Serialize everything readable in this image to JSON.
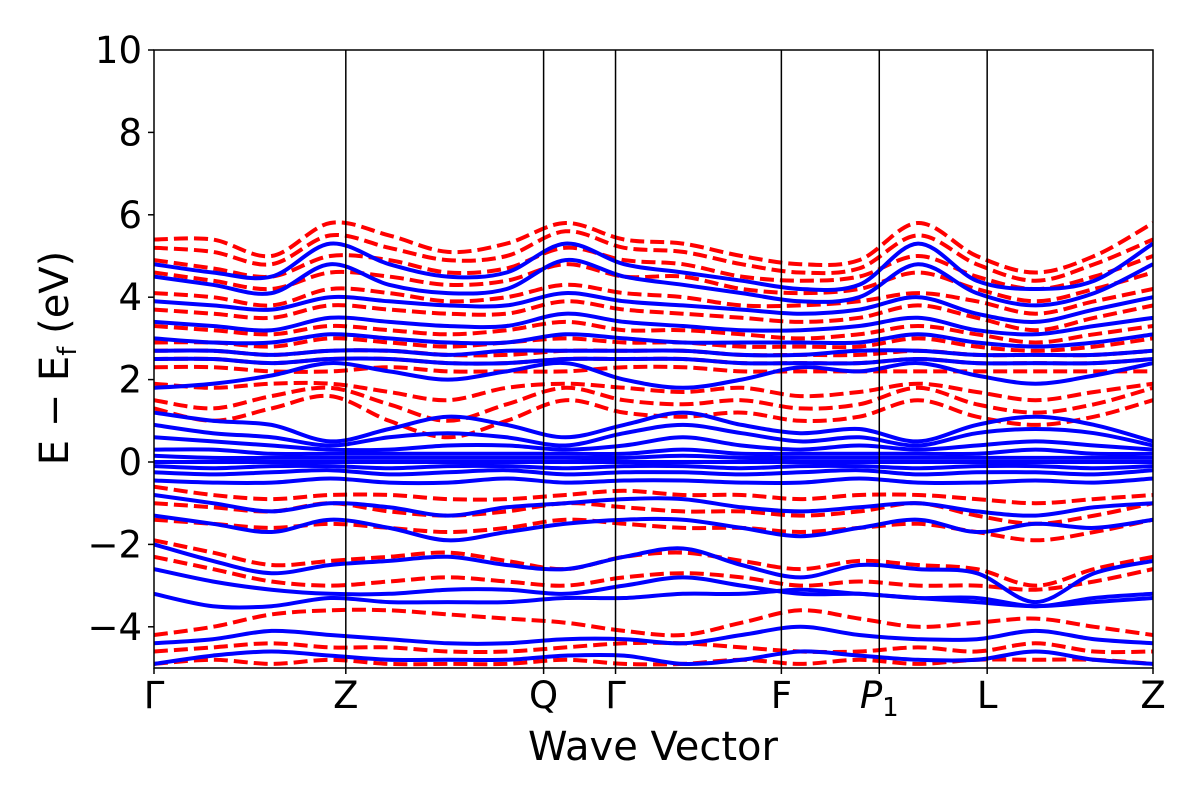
{
  "chart_data": {
    "type": "line",
    "title": "",
    "xlabel": "Wave Vector",
    "ylabel": "E − E_f (eV)",
    "ylabel_parts": {
      "main": "E − E",
      "sub": "f",
      "unit": " (eV)"
    },
    "ylim": [
      -5,
      10
    ],
    "yticks": [
      -4,
      -2,
      0,
      2,
      4,
      6,
      8,
      10
    ],
    "ytick_labels": [
      "−4",
      "−2",
      "0",
      "2",
      "4",
      "6",
      "8",
      "10"
    ],
    "xlim": [
      0,
      5.0
    ],
    "kpoints": [
      {
        "label": "Γ",
        "x": 0.0
      },
      {
        "label": "Z",
        "x": 0.96
      },
      {
        "label": "Q",
        "x": 1.95
      },
      {
        "label": "Γ",
        "x": 2.31
      },
      {
        "label": "F",
        "x": 3.14
      },
      {
        "label": "P",
        "sub": "1",
        "x": 3.63
      },
      {
        "label": "L",
        "x": 4.17
      },
      {
        "label": "Z",
        "x": 5.0
      }
    ],
    "series": [
      {
        "style": "dashed",
        "color": "#ff0000",
        "bands": [
          [
            5.4,
            5.4,
            5.0,
            5.8,
            5.5,
            5.1,
            5.3,
            5.8,
            5.4,
            5.3,
            5.0,
            4.8,
            4.9,
            5.8,
            5.0,
            4.6,
            5.0,
            5.8
          ],
          [
            5.2,
            5.1,
            4.8,
            5.5,
            5.2,
            4.9,
            5.0,
            5.6,
            5.2,
            5.1,
            4.8,
            4.6,
            4.7,
            5.5,
            4.8,
            4.4,
            4.8,
            5.4
          ],
          [
            4.9,
            4.7,
            4.5,
            5.0,
            4.9,
            4.6,
            4.7,
            5.2,
            4.9,
            4.8,
            4.5,
            4.4,
            4.5,
            5.0,
            4.5,
            4.2,
            4.5,
            5.0
          ],
          [
            4.6,
            4.4,
            4.2,
            4.6,
            4.5,
            4.3,
            4.4,
            4.8,
            4.5,
            4.5,
            4.2,
            4.1,
            4.2,
            4.6,
            4.2,
            3.9,
            4.2,
            4.6
          ],
          [
            4.1,
            4.0,
            3.8,
            4.2,
            4.1,
            3.9,
            4.0,
            4.3,
            4.1,
            4.0,
            3.8,
            3.8,
            3.9,
            4.1,
            3.9,
            3.6,
            3.9,
            4.2
          ],
          [
            3.7,
            3.6,
            3.5,
            3.8,
            3.7,
            3.6,
            3.6,
            3.9,
            3.7,
            3.6,
            3.5,
            3.4,
            3.5,
            3.8,
            3.5,
            3.2,
            3.5,
            3.8
          ],
          [
            3.3,
            3.2,
            3.1,
            3.3,
            3.2,
            3.1,
            3.2,
            3.4,
            3.2,
            3.2,
            3.1,
            3.0,
            3.1,
            3.3,
            3.1,
            2.9,
            3.1,
            3.3
          ],
          [
            2.9,
            2.9,
            2.8,
            3.0,
            2.9,
            2.8,
            2.9,
            3.0,
            2.9,
            2.9,
            2.8,
            2.8,
            2.8,
            3.0,
            2.8,
            2.7,
            2.8,
            3.0
          ],
          [
            2.7,
            2.7,
            2.6,
            2.7,
            2.7,
            2.6,
            2.6,
            2.7,
            2.7,
            2.7,
            2.6,
            2.6,
            2.6,
            2.7,
            2.6,
            2.6,
            2.6,
            2.7
          ],
          [
            2.5,
            2.5,
            2.4,
            2.5,
            2.5,
            2.4,
            2.4,
            2.5,
            2.5,
            2.5,
            2.4,
            2.4,
            2.4,
            2.5,
            2.4,
            2.4,
            2.4,
            2.5
          ],
          [
            2.3,
            2.3,
            2.2,
            2.2,
            2.3,
            2.2,
            2.2,
            2.2,
            2.3,
            2.3,
            2.2,
            2.2,
            2.2,
            2.2,
            2.2,
            2.2,
            2.2,
            2.2
          ],
          [
            1.9,
            1.8,
            1.9,
            1.9,
            1.7,
            1.5,
            1.8,
            1.9,
            1.8,
            1.7,
            1.8,
            1.6,
            1.7,
            1.9,
            1.7,
            1.5,
            1.7,
            1.9
          ],
          [
            1.5,
            1.3,
            1.6,
            1.8,
            1.4,
            1.0,
            1.4,
            1.8,
            1.5,
            1.4,
            1.5,
            1.3,
            1.4,
            1.8,
            1.4,
            1.2,
            1.4,
            1.8
          ],
          [
            1.3,
            1.0,
            1.3,
            1.6,
            1.0,
            0.6,
            1.0,
            1.5,
            1.2,
            1.1,
            1.2,
            1.0,
            1.1,
            1.5,
            1.1,
            0.9,
            1.1,
            1.5
          ],
          [
            -0.6,
            -0.8,
            -0.9,
            -0.8,
            -0.8,
            -0.9,
            -0.9,
            -0.8,
            -0.7,
            -0.8,
            -0.8,
            -0.9,
            -0.8,
            -0.8,
            -0.9,
            -1.0,
            -0.9,
            -0.8
          ],
          [
            -1.0,
            -1.1,
            -1.2,
            -1.0,
            -1.2,
            -1.3,
            -1.2,
            -1.0,
            -1.1,
            -1.2,
            -1.2,
            -1.3,
            -1.2,
            -1.0,
            -1.3,
            -1.5,
            -1.3,
            -1.0
          ],
          [
            -1.4,
            -1.5,
            -1.6,
            -1.5,
            -1.6,
            -1.7,
            -1.6,
            -1.4,
            -1.5,
            -1.6,
            -1.6,
            -1.7,
            -1.6,
            -1.5,
            -1.7,
            -1.9,
            -1.7,
            -1.4
          ],
          [
            -1.9,
            -2.2,
            -2.5,
            -2.4,
            -2.3,
            -2.2,
            -2.4,
            -2.6,
            -2.3,
            -2.2,
            -2.4,
            -2.6,
            -2.4,
            -2.5,
            -2.6,
            -3.0,
            -2.6,
            -2.3
          ],
          [
            -2.3,
            -2.6,
            -2.9,
            -3.0,
            -2.9,
            -2.8,
            -2.9,
            -3.0,
            -2.8,
            -2.7,
            -2.8,
            -3.0,
            -2.9,
            -3.0,
            -3.0,
            -3.1,
            -2.9,
            -2.6
          ],
          [
            -4.2,
            -4.0,
            -3.7,
            -3.6,
            -3.6,
            -3.7,
            -3.8,
            -3.9,
            -4.1,
            -4.2,
            -3.9,
            -3.6,
            -3.8,
            -4.0,
            -3.9,
            -3.8,
            -4.0,
            -4.2
          ],
          [
            -4.6,
            -4.5,
            -4.4,
            -4.5,
            -4.5,
            -4.6,
            -4.6,
            -4.5,
            -4.4,
            -4.4,
            -4.5,
            -4.6,
            -4.6,
            -4.5,
            -4.6,
            -4.4,
            -4.6,
            -4.6
          ],
          [
            -4.9,
            -4.8,
            -4.9,
            -4.8,
            -4.9,
            -4.9,
            -4.9,
            -4.8,
            -4.9,
            -4.9,
            -4.8,
            -4.9,
            -4.8,
            -4.9,
            -4.8,
            -4.8,
            -4.8,
            -4.9
          ]
        ]
      },
      {
        "style": "solid",
        "color": "#0000ff",
        "bands": [
          [
            4.8,
            4.6,
            4.5,
            5.3,
            4.8,
            4.5,
            4.6,
            5.3,
            4.8,
            4.6,
            4.4,
            4.2,
            4.3,
            5.3,
            4.4,
            4.2,
            4.4,
            5.3
          ],
          [
            4.5,
            4.3,
            4.1,
            4.8,
            4.3,
            4.1,
            4.2,
            4.9,
            4.5,
            4.3,
            4.1,
            3.9,
            4.0,
            4.8,
            4.1,
            3.8,
            4.1,
            4.8
          ],
          [
            3.9,
            3.8,
            3.7,
            4.0,
            3.9,
            3.8,
            3.8,
            4.1,
            3.9,
            3.8,
            3.7,
            3.6,
            3.7,
            4.0,
            3.6,
            3.4,
            3.7,
            4.0
          ],
          [
            3.4,
            3.3,
            3.2,
            3.5,
            3.4,
            3.3,
            3.3,
            3.6,
            3.4,
            3.3,
            3.2,
            3.2,
            3.3,
            3.5,
            3.2,
            3.1,
            3.3,
            3.5
          ],
          [
            3.0,
            2.9,
            2.9,
            3.1,
            3.0,
            2.9,
            2.9,
            3.1,
            3.0,
            2.9,
            2.9,
            2.9,
            2.9,
            3.1,
            2.9,
            2.8,
            2.9,
            3.1
          ],
          [
            2.7,
            2.7,
            2.6,
            2.7,
            2.7,
            2.6,
            2.7,
            2.7,
            2.7,
            2.7,
            2.6,
            2.6,
            2.7,
            2.7,
            2.6,
            2.6,
            2.6,
            2.7
          ],
          [
            2.5,
            2.5,
            2.4,
            2.5,
            2.5,
            2.4,
            2.4,
            2.5,
            2.5,
            2.5,
            2.4,
            2.4,
            2.4,
            2.5,
            2.4,
            2.4,
            2.4,
            2.5
          ],
          [
            1.8,
            1.9,
            2.1,
            2.4,
            2.2,
            2.0,
            2.2,
            2.4,
            2.0,
            1.8,
            2.0,
            2.3,
            2.2,
            2.4,
            2.1,
            1.9,
            2.1,
            2.4
          ],
          [
            1.2,
            1.0,
            0.9,
            0.5,
            0.8,
            1.1,
            0.9,
            0.6,
            0.9,
            1.2,
            0.9,
            0.7,
            0.8,
            0.5,
            0.9,
            1.1,
            0.9,
            0.5
          ],
          [
            0.9,
            0.7,
            0.6,
            0.4,
            0.6,
            0.7,
            0.6,
            0.4,
            0.7,
            0.9,
            0.7,
            0.5,
            0.6,
            0.4,
            0.7,
            0.8,
            0.7,
            0.4
          ],
          [
            0.6,
            0.5,
            0.4,
            0.3,
            0.3,
            0.4,
            0.4,
            0.3,
            0.4,
            0.6,
            0.4,
            0.3,
            0.4,
            0.3,
            0.4,
            0.5,
            0.4,
            0.3
          ],
          [
            0.3,
            0.3,
            0.2,
            0.2,
            0.2,
            0.2,
            0.2,
            0.2,
            0.2,
            0.3,
            0.2,
            0.2,
            0.2,
            0.2,
            0.2,
            0.3,
            0.2,
            0.2
          ],
          [
            0.15,
            0.1,
            0.1,
            0.1,
            0.1,
            0.1,
            0.1,
            0.1,
            0.1,
            0.15,
            0.1,
            0.1,
            0.1,
            0.1,
            0.1,
            0.1,
            0.1,
            0.1
          ],
          [
            0.0,
            0.0,
            0.0,
            0.0,
            0.0,
            0.0,
            0.0,
            0.0,
            0.0,
            0.0,
            0.0,
            0.0,
            0.0,
            0.0,
            0.0,
            0.0,
            0.0,
            0.0
          ],
          [
            -0.1,
            -0.15,
            -0.1,
            -0.1,
            -0.15,
            -0.1,
            -0.1,
            -0.15,
            -0.1,
            -0.1,
            -0.15,
            -0.1,
            -0.1,
            -0.15,
            -0.1,
            -0.1,
            -0.15,
            -0.1
          ],
          [
            -0.25,
            -0.3,
            -0.25,
            -0.2,
            -0.3,
            -0.25,
            -0.2,
            -0.3,
            -0.25,
            -0.25,
            -0.3,
            -0.25,
            -0.2,
            -0.3,
            -0.25,
            -0.25,
            -0.3,
            -0.2
          ],
          [
            -0.45,
            -0.5,
            -0.5,
            -0.4,
            -0.5,
            -0.5,
            -0.4,
            -0.5,
            -0.45,
            -0.45,
            -0.5,
            -0.5,
            -0.4,
            -0.5,
            -0.5,
            -0.45,
            -0.5,
            -0.4
          ],
          [
            -0.8,
            -1.0,
            -1.2,
            -1.0,
            -1.1,
            -1.3,
            -1.1,
            -1.0,
            -0.9,
            -0.9,
            -1.1,
            -1.2,
            -1.1,
            -1.0,
            -1.2,
            -1.3,
            -1.1,
            -1.0
          ],
          [
            -1.3,
            -1.5,
            -1.7,
            -1.4,
            -1.6,
            -1.9,
            -1.7,
            -1.5,
            -1.4,
            -1.4,
            -1.6,
            -1.8,
            -1.6,
            -1.4,
            -1.7,
            -1.5,
            -1.6,
            -1.4
          ],
          [
            -2.0,
            -2.4,
            -2.7,
            -2.5,
            -2.4,
            -2.3,
            -2.5,
            -2.6,
            -2.3,
            -2.1,
            -2.5,
            -2.8,
            -2.5,
            -2.6,
            -2.7,
            -3.4,
            -2.7,
            -2.4
          ],
          [
            -2.6,
            -2.9,
            -3.1,
            -3.2,
            -3.2,
            -3.1,
            -3.1,
            -3.2,
            -3.0,
            -2.8,
            -3.0,
            -3.2,
            -3.2,
            -3.3,
            -3.3,
            -3.5,
            -3.3,
            -3.2
          ],
          [
            -3.2,
            -3.5,
            -3.5,
            -3.3,
            -3.4,
            -3.4,
            -3.4,
            -3.3,
            -3.3,
            -3.2,
            -3.2,
            -3.1,
            -3.2,
            -3.3,
            -3.4,
            -3.5,
            -3.4,
            -3.3
          ],
          [
            -4.4,
            -4.3,
            -4.1,
            -4.2,
            -4.3,
            -4.4,
            -4.4,
            -4.3,
            -4.3,
            -4.4,
            -4.2,
            -4.0,
            -4.2,
            -4.3,
            -4.3,
            -4.1,
            -4.3,
            -4.4
          ],
          [
            -4.9,
            -4.7,
            -4.6,
            -4.7,
            -4.8,
            -4.8,
            -4.8,
            -4.7,
            -4.7,
            -4.9,
            -4.8,
            -4.6,
            -4.7,
            -4.8,
            -4.8,
            -4.6,
            -4.8,
            -4.9
          ]
        ]
      }
    ]
  }
}
